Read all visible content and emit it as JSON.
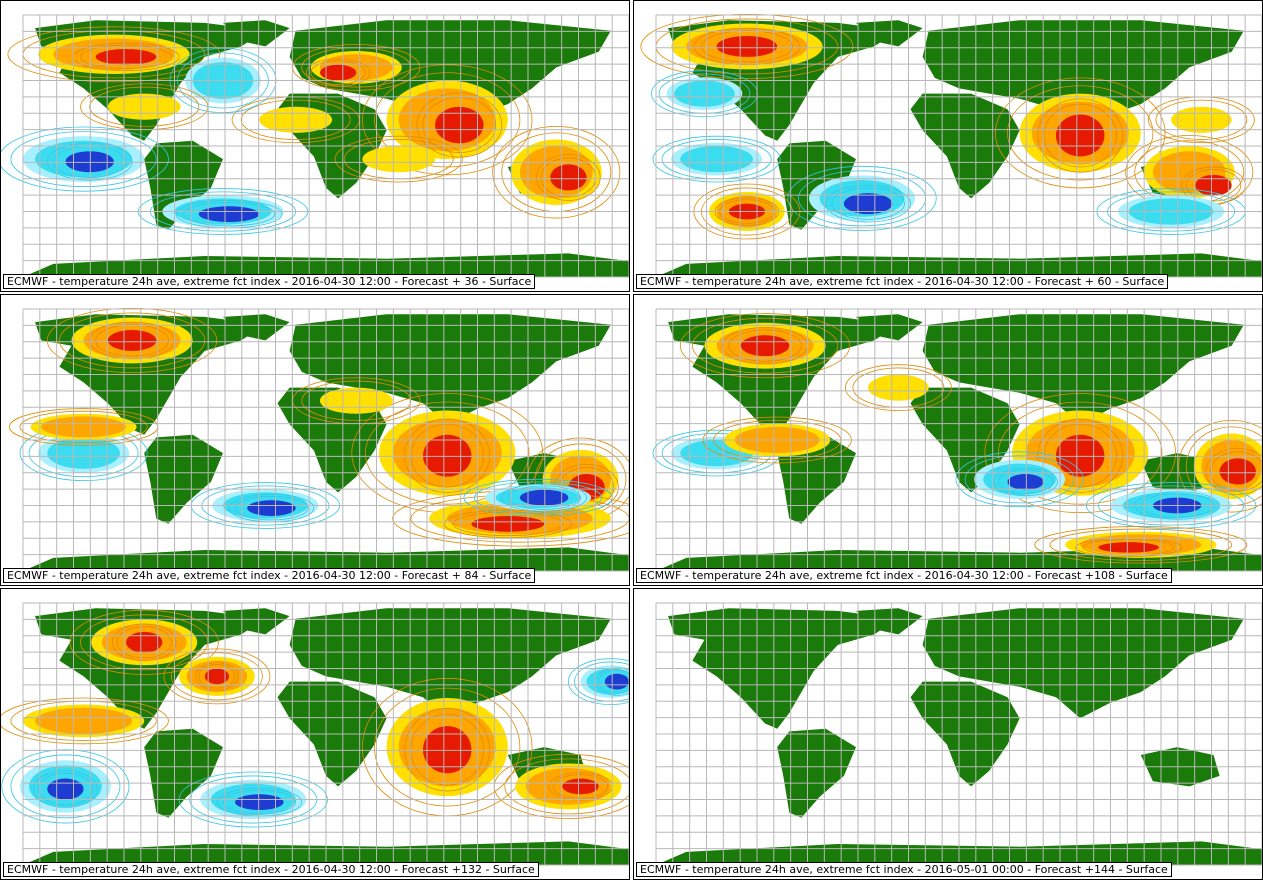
{
  "colors": {
    "land": "#1a7a0a",
    "grid": "#b8b8b8",
    "red": "#e51a00",
    "dark_red": "#a30000",
    "orange": "#ffa500",
    "yellow": "#ffe000",
    "cyan": "#3cdcf0",
    "light_cyan": "#a8f0ff",
    "blue": "#1e3cd2",
    "dark_blue": "#0a1e96",
    "contour_orange": "#e08a00",
    "contour_cyan": "#30c8e8"
  },
  "panels": [
    {
      "caption": "ECMWF - temperature 24h ave, extreme fct index - 2016-04-30 12:00 - Forecast + 36 - Surface",
      "has_data": true
    },
    {
      "caption": "ECMWF - temperature 24h ave, extreme fct index - 2016-04-30 12:00 - Forecast + 60 - Surface",
      "has_data": true
    },
    {
      "caption": "ECMWF - temperature 24h ave, extreme fct index - 2016-04-30 12:00 - Forecast + 84 - Surface",
      "has_data": true
    },
    {
      "caption": "ECMWF - temperature 24h ave, extreme fct index - 2016-04-30 12:00 - Forecast +108 - Surface",
      "has_data": true
    },
    {
      "caption": "ECMWF - temperature 24h ave, extreme fct index - 2016-04-30 12:00 - Forecast +132 - Surface",
      "has_data": true
    },
    {
      "caption": "ECMWF - temperature 24h ave, extreme fct index - 2016-05-01 00:00 - Forecast +144 - Surface",
      "has_data": false
    }
  ]
}
